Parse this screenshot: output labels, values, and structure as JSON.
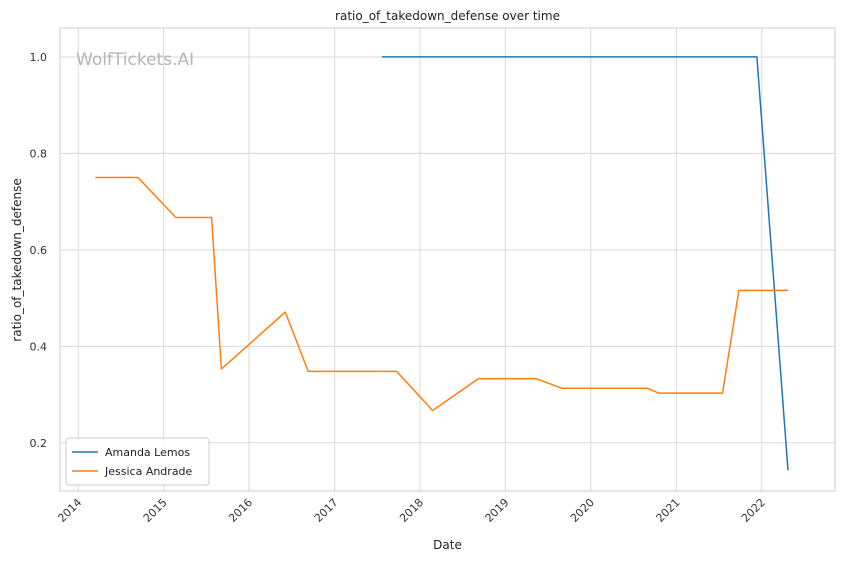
{
  "chart_data": {
    "type": "line",
    "title": "ratio_of_takedown_defense over time",
    "xlabel": "Date",
    "ylabel": "ratio_of_takedown_defense",
    "watermark": "WolfTickets.AI",
    "xlim": [
      "2013-10-15",
      "2022-11-10"
    ],
    "ylim": [
      0.1,
      1.06
    ],
    "x_ticks": [
      "2014-01-01",
      "2015-01-01",
      "2016-01-01",
      "2017-01-01",
      "2018-01-01",
      "2019-01-01",
      "2020-01-01",
      "2021-01-01",
      "2022-01-01"
    ],
    "x_tick_labels": [
      "2014",
      "2015",
      "2016",
      "2017",
      "2018",
      "2019",
      "2020",
      "2021",
      "2022"
    ],
    "y_ticks": [
      0.2,
      0.4,
      0.6,
      0.8,
      1.0
    ],
    "y_tick_labels": [
      "0.2",
      "0.4",
      "0.6",
      "0.8",
      "1.0"
    ],
    "grid": true,
    "legend_position": "bottom-left",
    "series": [
      {
        "name": "Amanda Lemos",
        "color": "#1f77b4",
        "x": [
          "2017-07-22",
          "2021-12-11",
          "2022-04-23"
        ],
        "y": [
          1.0,
          1.0,
          0.143
        ]
      },
      {
        "name": "Jessica Andrade",
        "color": "#ff7f0e",
        "x": [
          "2014-03-15",
          "2014-09-13",
          "2015-02-22",
          "2015-07-25",
          "2015-09-05",
          "2016-06-04",
          "2016-09-10",
          "2017-09-23",
          "2018-02-24",
          "2018-09-08",
          "2019-05-11",
          "2019-08-31",
          "2020-08-30",
          "2020-10-17",
          "2021-07-17",
          "2021-09-25",
          "2022-04-23"
        ],
        "y": [
          0.75,
          0.75,
          0.667,
          0.667,
          0.353,
          0.471,
          0.348,
          0.348,
          0.267,
          0.333,
          0.333,
          0.313,
          0.313,
          0.303,
          0.303,
          0.516,
          0.516
        ]
      }
    ]
  }
}
